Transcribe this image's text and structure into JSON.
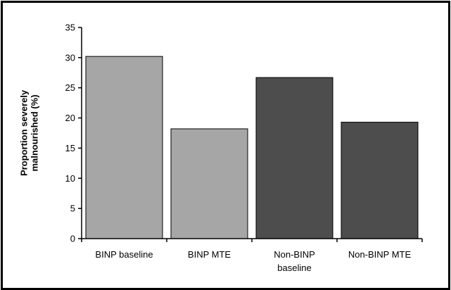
{
  "chart_data": {
    "type": "bar",
    "title": "",
    "xlabel": "",
    "ylabel_lines": [
      "Proportion severely",
      "malnourished (%)"
    ],
    "ylim": [
      0,
      35
    ],
    "yticks": [
      0,
      5,
      10,
      15,
      20,
      25,
      30,
      35
    ],
    "grid": false,
    "legend": "none",
    "categories": [
      [
        "BINP baseline"
      ],
      [
        "BINP MTE"
      ],
      [
        "Non-BINP",
        "baseline"
      ],
      [
        "Non-BINP MTE"
      ]
    ],
    "values": [
      30.2,
      18.2,
      26.7,
      19.3
    ],
    "bar_colors": [
      "#a6a6a6",
      "#a6a6a6",
      "#4d4d4d",
      "#4d4d4d"
    ]
  }
}
